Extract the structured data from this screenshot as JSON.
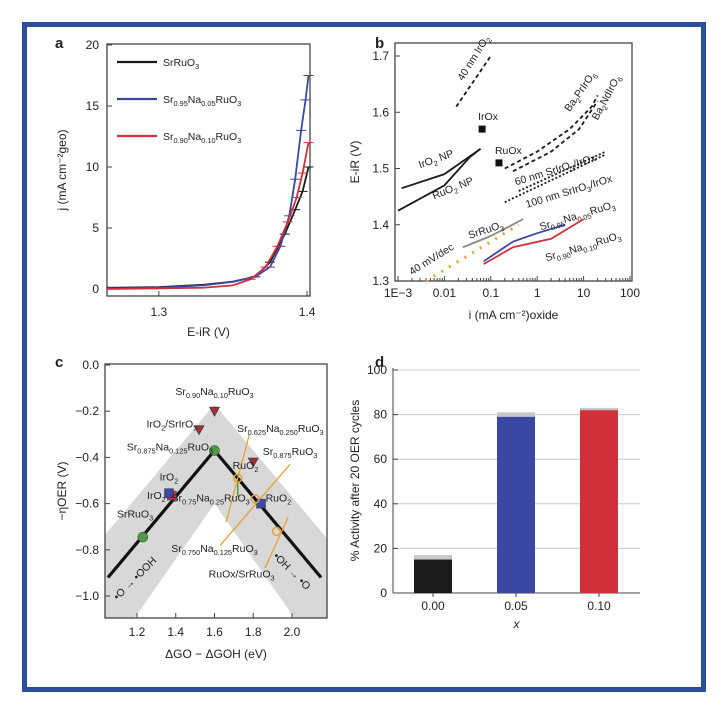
{
  "colors": {
    "frame": "#2c4c9c",
    "black": "#1a1a1a",
    "blue": "#3a48a4",
    "red": "#d0303c",
    "orange": "#e8a030",
    "green": "#4c9a44",
    "gray": "#8a8a8a",
    "band": "#d8d8d8"
  },
  "chart_data": [
    {
      "panel": "a",
      "type": "line",
      "xlabel": "E-iR (V)",
      "ylabel": "j (mA cm⁻²geo)",
      "xlim": [
        1.265,
        1.402
      ],
      "ylim": [
        0,
        20
      ],
      "xticks": [
        1.3,
        1.4
      ],
      "yticks": [
        0,
        5,
        10,
        15,
        20
      ],
      "legend": "top-left",
      "series": [
        {
          "name": "SrRuO3",
          "color": "black",
          "points": [
            [
              1.265,
              0.1
            ],
            [
              1.3,
              0.15
            ],
            [
              1.33,
              0.35
            ],
            [
              1.35,
              0.6
            ],
            [
              1.365,
              1.0
            ],
            [
              1.375,
              2.2
            ],
            [
              1.385,
              4.5
            ],
            [
              1.392,
              6.5
            ],
            [
              1.397,
              8
            ],
            [
              1.401,
              10
            ]
          ]
        },
        {
          "name": "Sr0.95Na0.05RuO3",
          "color": "blue",
          "points": [
            [
              1.265,
              0.05
            ],
            [
              1.3,
              0.1
            ],
            [
              1.33,
              0.3
            ],
            [
              1.35,
              0.6
            ],
            [
              1.365,
              1.0
            ],
            [
              1.375,
              1.8
            ],
            [
              1.382,
              3.5
            ],
            [
              1.388,
              6
            ],
            [
              1.392,
              9
            ],
            [
              1.396,
              13
            ],
            [
              1.399,
              15.5
            ],
            [
              1.401,
              17.5
            ]
          ]
        },
        {
          "name": "Sr0.90Na0.10RuO3",
          "color": "red",
          "points": [
            [
              1.265,
              0
            ],
            [
              1.3,
              0.05
            ],
            [
              1.33,
              0.1
            ],
            [
              1.35,
              0.3
            ],
            [
              1.362,
              0.8
            ],
            [
              1.372,
              1.8
            ],
            [
              1.38,
              3.5
            ],
            [
              1.387,
              5.5
            ],
            [
              1.393,
              7.5
            ],
            [
              1.397,
              9.5
            ],
            [
              1.401,
              12
            ]
          ]
        }
      ]
    },
    {
      "panel": "b",
      "type": "line",
      "xscale": "log",
      "xlabel": "i (mA cm⁻²)oxide",
      "ylabel": "E-iR (V)",
      "xlim": [
        0.0008,
        100
      ],
      "ylim": [
        1.3,
        1.72
      ],
      "xticks": [
        {
          "v": 0.001,
          "label": "1E−3"
        },
        {
          "v": 0.01,
          "label": "0.01"
        },
        {
          "v": 0.1,
          "label": "0.1"
        },
        {
          "v": 1,
          "label": "1"
        },
        {
          "v": 10,
          "label": "10"
        },
        {
          "v": 100,
          "label": "100"
        }
      ],
      "yticks": [
        1.3,
        1.4,
        1.5,
        1.6,
        1.7
      ],
      "series": [
        {
          "name": "40 nm IrO2",
          "color": "black",
          "style": "dash",
          "points": [
            [
              0.018,
              1.61
            ],
            [
              0.1,
              1.7
            ]
          ],
          "label_at": [
            0.025,
            1.655
          ],
          "rot": -58
        },
        {
          "name": "IrO2 NP",
          "color": "black",
          "points": [
            [
              0.0012,
              1.465
            ],
            [
              0.01,
              1.49
            ],
            [
              0.06,
              1.535
            ]
          ],
          "label_at": [
            0.003,
            1.5
          ],
          "rot": -20
        },
        {
          "name": "RuO2 NP",
          "color": "black",
          "points": [
            [
              0.001,
              1.425
            ],
            [
              0.01,
              1.47
            ],
            [
              0.035,
              1.52
            ],
            [
              0.06,
              1.535
            ]
          ],
          "label_at": [
            0.006,
            1.445
          ],
          "rot": -22
        },
        {
          "name": "Ba2PrIrO6",
          "color": "black",
          "style": "dash",
          "points": [
            [
              0.2,
              1.5
            ],
            [
              1,
              1.53
            ],
            [
              5,
              1.57
            ],
            [
              15,
              1.61
            ],
            [
              20,
              1.63
            ]
          ],
          "label_at": [
            5,
            1.6
          ],
          "rot": -55
        },
        {
          "name": "Ba2NdIrO6",
          "color": "black",
          "style": "dash",
          "points": [
            [
              0.3,
              1.495
            ],
            [
              2,
              1.53
            ],
            [
              8,
              1.57
            ],
            [
              20,
              1.62
            ]
          ],
          "label_at": [
            20,
            1.585
          ],
          "rot": -62
        },
        {
          "name": "60 nm SrIrO3/IrOx",
          "color": "black",
          "style": "dot",
          "points": [
            [
              0.4,
              1.46
            ],
            [
              30,
              1.53
            ]
          ],
          "label_at": [
            0.35,
            1.47
          ],
          "rot": -17
        },
        {
          "name": "100 nm SrIrO3/IrOx",
          "color": "black",
          "style": "dot",
          "points": [
            [
              0.2,
              1.44
            ],
            [
              30,
              1.525
            ]
          ],
          "label_at": [
            0.6,
            1.43
          ],
          "rot": -17
        },
        {
          "name": "SrRuO3",
          "color": "gray",
          "points": [
            [
              0.025,
              1.36
            ],
            [
              0.1,
              1.38
            ],
            [
              0.5,
              1.41
            ]
          ],
          "label_at": [
            0.035,
            1.375
          ],
          "rot": -18
        },
        {
          "name": "Sr0.95Na0.05RuO3",
          "color": "blue",
          "points": [
            [
              0.07,
              1.335
            ],
            [
              0.3,
              1.37
            ],
            [
              1,
              1.385
            ],
            [
              4,
              1.4
            ]
          ],
          "label_at": [
            1.2,
            1.39
          ],
          "rot": -17
        },
        {
          "name": "Sr0.90Na0.10RuO3",
          "color": "red",
          "points": [
            [
              0.07,
              1.33
            ],
            [
              0.3,
              1.36
            ],
            [
              2,
              1.375
            ],
            [
              10,
              1.41
            ]
          ],
          "label_at": [
            1.6,
            1.335
          ],
          "rot": -17
        },
        {
          "name": "40 mV/dec",
          "color": "orange",
          "style": "bigdot",
          "points": [
            [
              0.004,
              1.3
            ],
            [
              0.4,
              1.4
            ]
          ],
          "label_at": [
            0.002,
            1.31
          ],
          "rot": -32
        }
      ],
      "markers": [
        {
          "name": "IrOx",
          "x": 0.065,
          "y": 1.57
        },
        {
          "name": "RuOx",
          "x": 0.15,
          "y": 1.51
        }
      ]
    },
    {
      "panel": "c",
      "type": "scatter",
      "xlabel": "ΔGO − ΔGOH (eV)",
      "ylabel": "−ηOER (V)",
      "xlim": [
        1.035,
        2.18
      ],
      "ylim": [
        -1.095,
        0.0
      ],
      "xticks": [
        1.2,
        1.4,
        1.6,
        1.8,
        2.0
      ],
      "yticks": [
        0.0,
        -0.2,
        -0.4,
        -0.6,
        -0.8,
        -1.0
      ],
      "volcano": [
        [
          1.05,
          -0.92
        ],
        [
          1.6,
          -0.37
        ],
        [
          2.15,
          -0.92
        ]
      ],
      "arrow_labels": [
        "•O → •OOH",
        "•OH → •O"
      ],
      "points": [
        {
          "label": "Sr0.90Na0.10RuO3",
          "x": 1.6,
          "y": -0.2,
          "shape": "triangle",
          "color": "red",
          "lx": 1.6,
          "ly": -0.13
        },
        {
          "label": "IrO2/SrIrO3",
          "x": 1.52,
          "y": -0.28,
          "shape": "triangle",
          "color": "red",
          "lx": 1.38,
          "ly": -0.27
        },
        {
          "label": "RuO2",
          "x": 1.8,
          "y": -0.42,
          "shape": "triangle",
          "color": "red",
          "lx": 1.76,
          "ly": -0.45
        },
        {
          "label": "Sr0.875Na0.125RuO3",
          "x": 1.6,
          "y": -0.37,
          "shape": "circle",
          "color": "green",
          "lx": 1.37,
          "ly": -0.37
        },
        {
          "label": "IrO2",
          "x": 1.38,
          "y": -0.565,
          "shape": "square",
          "color": "red",
          "lx": 1.365,
          "ly": -0.5
        },
        {
          "label": "IrO2",
          "x": 1.365,
          "y": -0.555,
          "shape": "square",
          "color": "blue",
          "lx": 1.3,
          "ly": -0.58
        },
        {
          "label": "Sr0.75Na0.25RuO3",
          "x": 1.72,
          "y": -0.58,
          "shape": "none",
          "color": "green",
          "lx": 1.58,
          "ly": -0.59
        },
        {
          "label": "SrRuO3",
          "x": 1.23,
          "y": -0.745,
          "shape": "circle",
          "color": "green",
          "lx": 1.19,
          "ly": -0.66
        },
        {
          "label": "RuO2",
          "x": 1.84,
          "y": -0.6,
          "shape": "square",
          "color": "blue",
          "lx": 1.93,
          "ly": -0.59
        },
        {
          "label": "Sr0.625Na0.250RuO3",
          "x": 1.72,
          "y": -0.49,
          "shape": "ocircle",
          "color": "orange",
          "lx": 1.94,
          "ly": -0.29
        },
        {
          "label": "Sr0.875RuO3",
          "x": 1.81,
          "y": -0.58,
          "shape": "ocircle",
          "color": "orange",
          "lx": 1.99,
          "ly": -0.39
        },
        {
          "label": "Sr0.750Na0.125RuO3",
          "x": 1.72,
          "y": -0.49,
          "shape": "none",
          "color": "orange",
          "lx": 1.6,
          "ly": -0.81
        },
        {
          "label": "RuOx/SrRuO3",
          "x": 1.92,
          "y": -0.72,
          "shape": "ocircle",
          "color": "orange",
          "lx": 1.74,
          "ly": -0.92
        }
      ]
    },
    {
      "panel": "d",
      "type": "bar",
      "xlabel": "x",
      "ylabel": "% Activity after 20 OER cycles",
      "ylim": [
        0,
        100
      ],
      "yticks": [
        0,
        20,
        40,
        60,
        80,
        100
      ],
      "categories": [
        "0.00",
        "0.05",
        "0.10"
      ],
      "values": [
        15,
        79,
        82
      ],
      "errors": [
        2,
        2,
        1
      ],
      "colors": [
        "black",
        "blue",
        "red"
      ]
    }
  ],
  "panel_labels": [
    "a",
    "b",
    "c",
    "d"
  ]
}
